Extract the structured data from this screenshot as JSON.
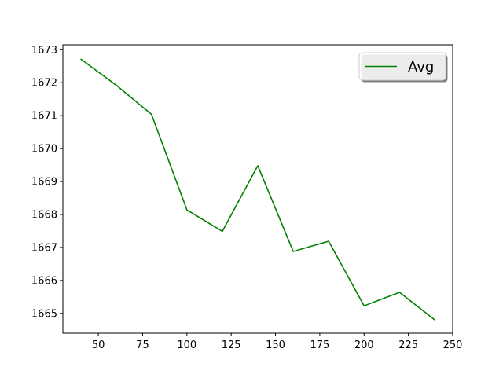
{
  "chart_data": {
    "type": "line",
    "x": [
      40,
      60,
      80,
      100,
      120,
      140,
      160,
      180,
      200,
      220,
      240
    ],
    "series": [
      {
        "name": "Avg",
        "color": "#008000",
        "values": [
          1672.72,
          1671.93,
          1671.04,
          1668.14,
          1667.49,
          1669.48,
          1666.88,
          1667.19,
          1665.23,
          1665.64,
          1664.8
        ]
      }
    ],
    "xlim": [
      30,
      250
    ],
    "ylim": [
      1664.4,
      1673.15
    ],
    "x_ticks": [
      50,
      75,
      100,
      125,
      150,
      175,
      200,
      225,
      250
    ],
    "y_ticks": [
      1665,
      1666,
      1667,
      1668,
      1669,
      1670,
      1671,
      1672,
      1673
    ],
    "legend": {
      "placement": "top-right",
      "entries": [
        "Avg"
      ]
    },
    "grid": false,
    "title": "",
    "xlabel": "",
    "ylabel": ""
  }
}
